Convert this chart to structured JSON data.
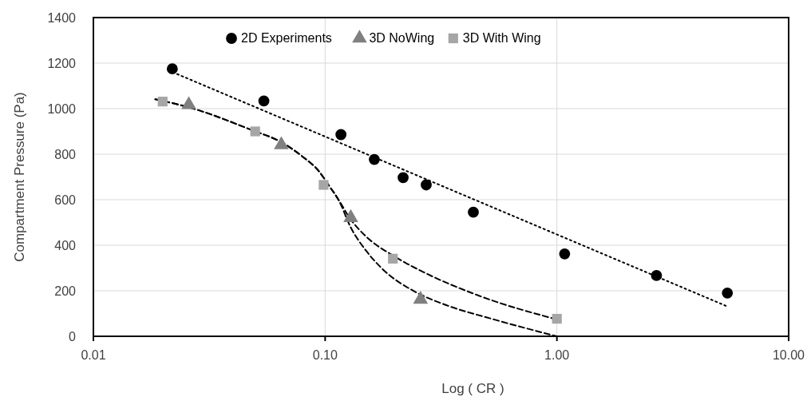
{
  "chart_data": {
    "type": "scatter",
    "xlabel": "Log ( CR )",
    "ylabel": "Compartment Pressure (Pa)",
    "log": "x",
    "grid": true,
    "legend": "top",
    "xlim": [
      0.01,
      10
    ],
    "xticks": [
      {
        "value": 0.01,
        "label": "0.01"
      },
      {
        "value": 0.1,
        "label": "0.10"
      },
      {
        "value": 1,
        "label": "1.00"
      },
      {
        "value": 10,
        "label": "10.00"
      }
    ],
    "ylim": [
      0,
      1400
    ],
    "yticks": [
      0,
      200,
      400,
      600,
      800,
      1000,
      1200,
      1400
    ],
    "series": [
      {
        "type": "line",
        "line_style": "dotted",
        "color": "#000000",
        "x": [
          0.022,
          5.5
        ],
        "values": [
          1160,
          129
        ]
      },
      {
        "type": "line",
        "line_style": "dashed",
        "color": "#000000",
        "x": [
          0.0185,
          0.0258,
          0.0499,
          0.0633,
          0.0802,
          0.094,
          0.104,
          0.114,
          0.129,
          0.151,
          0.196,
          0.262,
          0.459,
          1.0
        ],
        "values": [
          1041,
          1006,
          900,
          858,
          788,
          725,
          661,
          601,
          513,
          436,
          355,
          285,
          179,
          74
        ]
      },
      {
        "type": "line",
        "line_style": "dashed",
        "color": "#000000",
        "x": [
          0.0185,
          0.0258,
          0.0499,
          0.0633,
          0.0802,
          0.094,
          0.104,
          0.114,
          0.129,
          0.151,
          0.177,
          0.243,
          0.333,
          0.535,
          1.0
        ],
        "values": [
          1041,
          1006,
          900,
          858,
          788,
          725,
          661,
          601,
          478,
          373,
          295,
          197,
          137,
          74,
          0
        ]
      },
      {
        "name": "2D Experiments",
        "marker": "circle",
        "color": "#000000",
        "x": [
          0.0219,
          0.0544,
          0.117,
          0.163,
          0.217,
          0.273,
          0.436,
          1.08,
          2.69,
          5.44
        ],
        "values": [
          1175,
          1034,
          886,
          777,
          697,
          665,
          545,
          362,
          267,
          190
        ]
      },
      {
        "name": "3D NoWing",
        "marker": "triangle",
        "color": "#808080",
        "x": [
          0.0258,
          0.0647,
          0.129,
          0.258
        ],
        "values": [
          1017,
          841,
          521,
          162
        ]
      },
      {
        "name": "3D With Wing",
        "marker": "square",
        "color": "#a6a6a6",
        "x": [
          0.0199,
          0.0499,
          0.0985,
          0.196,
          1.0
        ],
        "values": [
          1031,
          900,
          665,
          341,
          77
        ]
      }
    ]
  }
}
